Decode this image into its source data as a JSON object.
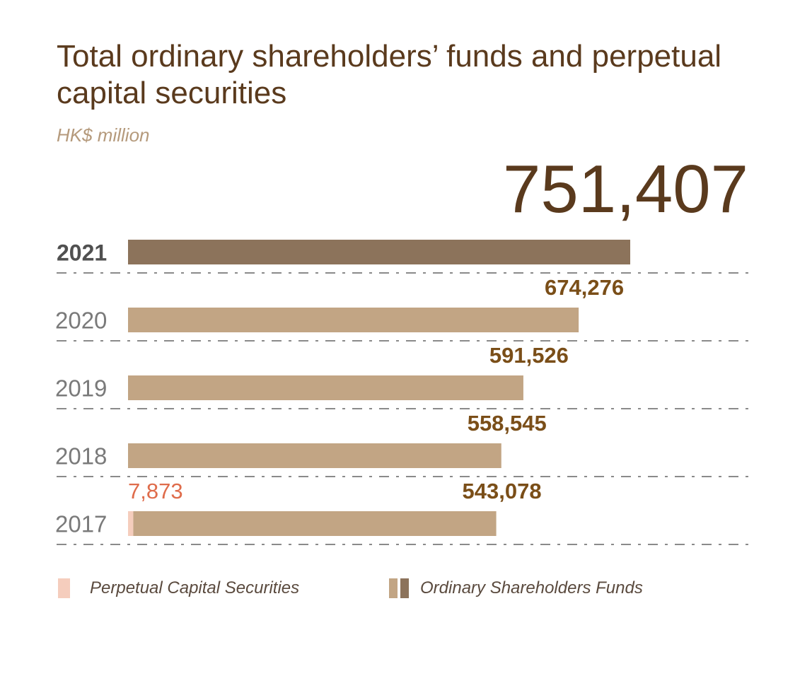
{
  "chart_data": {
    "type": "bar",
    "orientation": "horizontal",
    "title": "Total ordinary shareholders’ funds and perpetual capital securities",
    "subtitle": "HK$ million",
    "categories": [
      "2021",
      "2020",
      "2019",
      "2018",
      "2017"
    ],
    "series": [
      {
        "name": "Perpetual Capital Securities",
        "values": [
          0,
          0,
          0,
          0,
          7873
        ]
      },
      {
        "name": "Ordinary Shareholders Funds",
        "values": [
          751407,
          674276,
          591526,
          558545,
          543078
        ]
      }
    ],
    "value_labels": {
      "2021": [
        "751,407"
      ],
      "2020": [
        "674,276"
      ],
      "2019": [
        "591,526"
      ],
      "2018": [
        "558,545"
      ],
      "2017": [
        "7,873",
        "543,078"
      ]
    },
    "highlight_category": "2021",
    "xlim": [
      0,
      751407
    ],
    "grid": "dashed separators between rows",
    "legend_position": "bottom"
  },
  "colors": {
    "title": "#5a3a1d",
    "subtitle": "#b59a7c",
    "highlight_bar": "#8c735b",
    "bar": "#c2a584",
    "perpetual": "#f5cdbd",
    "value_label": "#7a4e18",
    "perpetual_label": "#df6c4b",
    "category_label": "#7a7a7a",
    "highlight_category_label": "#505050",
    "separator": "#8a8a8a"
  }
}
